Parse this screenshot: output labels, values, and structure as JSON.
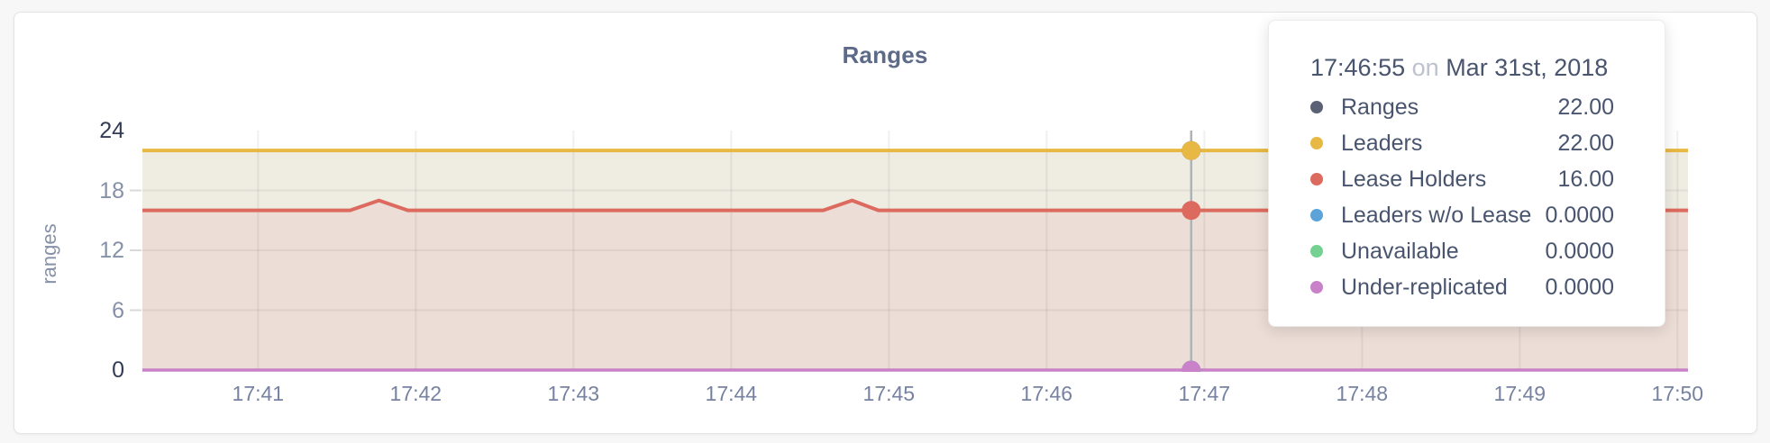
{
  "chart_data": {
    "type": "line",
    "title": "Ranges",
    "ylabel": "ranges",
    "ylim": [
      0,
      24
    ],
    "y_ticks": [
      0,
      6,
      12,
      18,
      24
    ],
    "y_ticks_emphasized": [
      0,
      24
    ],
    "x_ticks": [
      "17:41",
      "17:42",
      "17:43",
      "17:44",
      "17:45",
      "17:46",
      "17:47",
      "17:48",
      "17:49",
      "17:50"
    ],
    "x_domain": [
      "17:40:16",
      "17:50:04"
    ],
    "grid": true,
    "series": [
      {
        "name": "Ranges",
        "color": "#5a6175",
        "fill": null,
        "points": [
          [
            "17:40:16",
            22
          ],
          [
            "17:50:04",
            22
          ]
        ]
      },
      {
        "name": "Leaders",
        "color": "#e7b843",
        "fill": "#efece2",
        "points": [
          [
            "17:40:16",
            22
          ],
          [
            "17:50:04",
            22
          ]
        ]
      },
      {
        "name": "Lease Holders",
        "color": "#dd6a5e",
        "fill": "#ecddd6",
        "points": [
          [
            "17:40:16",
            16
          ],
          [
            "17:41:35",
            16
          ],
          [
            "17:41:46",
            17
          ],
          [
            "17:41:57",
            16
          ],
          [
            "17:44:35",
            16
          ],
          [
            "17:44:46",
            17
          ],
          [
            "17:44:56",
            16
          ],
          [
            "17:50:04",
            16
          ]
        ]
      },
      {
        "name": "Leaders w/o Lease",
        "color": "#5ba3d8",
        "fill": null,
        "points": [
          [
            "17:40:16",
            0
          ],
          [
            "17:50:04",
            0
          ]
        ]
      },
      {
        "name": "Unavailable",
        "color": "#74d191",
        "fill": null,
        "points": [
          [
            "17:40:16",
            0
          ],
          [
            "17:50:04",
            0
          ]
        ]
      },
      {
        "name": "Under-replicated",
        "color": "#c981c9",
        "fill": null,
        "points": [
          [
            "17:40:16",
            0
          ],
          [
            "17:50:04",
            0
          ]
        ]
      }
    ],
    "hover": {
      "time": "17:46:55",
      "points": [
        {
          "series": "Ranges",
          "value": 22
        },
        {
          "series": "Leaders",
          "value": 22
        },
        {
          "series": "Lease Holders",
          "value": 16
        },
        {
          "series": "Leaders w/o Lease",
          "value": 0
        },
        {
          "series": "Unavailable",
          "value": 0
        },
        {
          "series": "Under-replicated",
          "value": 0
        }
      ]
    }
  },
  "tooltip": {
    "time": "17:46:55",
    "conjunction": "on",
    "date": "Mar 31st, 2018",
    "rows": [
      {
        "label": "Ranges",
        "value": "22.00",
        "color": "#5a6175"
      },
      {
        "label": "Leaders",
        "value": "22.00",
        "color": "#e7b843"
      },
      {
        "label": "Lease Holders",
        "value": "16.00",
        "color": "#dd6a5e"
      },
      {
        "label": "Leaders w/o Lease",
        "value": "0.0000",
        "color": "#5ba3d8"
      },
      {
        "label": "Unavailable",
        "value": "0.0000",
        "color": "#74d191"
      },
      {
        "label": "Under-replicated",
        "value": "0.0000",
        "color": "#c981c9"
      }
    ]
  },
  "colors": {
    "page_bg": "#f7f7f7",
    "card_bg": "#ffffff",
    "grid": "rgba(80,70,60,0.08)",
    "hover_line": "#b0b3b5",
    "title": "#5d6b89"
  }
}
